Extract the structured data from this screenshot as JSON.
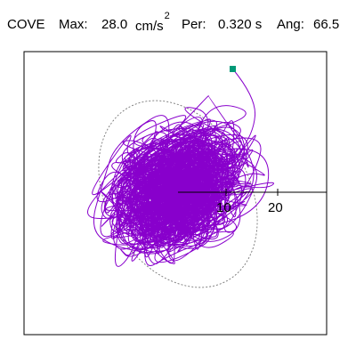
{
  "header": {
    "station": "COVE",
    "max_label": "Max:",
    "max_value": "28.0",
    "max_unit": "cm/s",
    "max_unit_exp": "2",
    "per_label": "Per:",
    "per_value": "0.320 s",
    "ang_label": "Ang:",
    "ang_value": "66.5"
  },
  "plot": {
    "axis_ticks": [
      "10",
      "20"
    ],
    "colors": {
      "trace": "#8800cc",
      "marker": "#009977",
      "envelope": "#777777",
      "frame": "#000000"
    }
  }
}
